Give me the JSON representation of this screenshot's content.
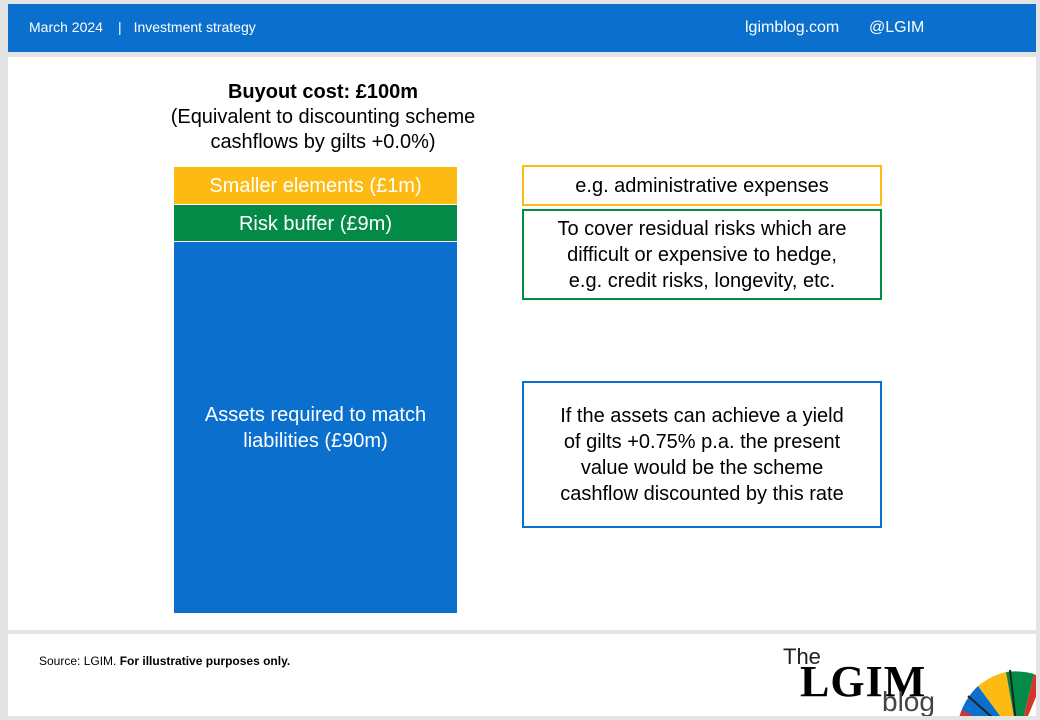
{
  "header": {
    "date": "March 2024",
    "separator": "|",
    "category": "Investment strategy",
    "site": "lgimblog.com",
    "handle": "@LGIM"
  },
  "chart_data": {
    "type": "bar",
    "title": "Buyout cost: £100m",
    "subtitle": "(Equivalent to discounting scheme\ncashflows by gilts +0.0%)",
    "stacked": true,
    "unit": "£m",
    "series": [
      {
        "name": "Assets required to match liabilities",
        "label": "Assets required to match\nliabilities (£90m)",
        "value": 90,
        "color": "#0b70cd"
      },
      {
        "name": "Risk buffer",
        "label": "Risk buffer (£9m)",
        "value": 9,
        "color": "#048a47"
      },
      {
        "name": "Smaller elements",
        "label": "Smaller elements (£1m)",
        "value": 1,
        "color": "#fcba12"
      }
    ],
    "annotations": [
      {
        "text": "e.g. administrative expenses",
        "color": "#fcba12"
      },
      {
        "text": "To cover residual risks which are\ndifficult or expensive to hedge,\ne.g. credit risks, longevity, etc.",
        "color": "#048a47"
      },
      {
        "text": "If the assets can achieve a yield\nof gilts +0.75% p.a. the present\nvalue would be the scheme\ncashflow discounted by this rate",
        "color": "#0b70cd"
      }
    ]
  },
  "footer": {
    "source": "Source: LGIM.",
    "disclaimer": "For illustrative purposes only.",
    "logo_the": "The",
    "logo_main": "LGIM",
    "logo_blog": "blog"
  },
  "colors": {
    "brand_blue": "#0b70cd",
    "green": "#048a47",
    "yellow": "#fcba12"
  }
}
